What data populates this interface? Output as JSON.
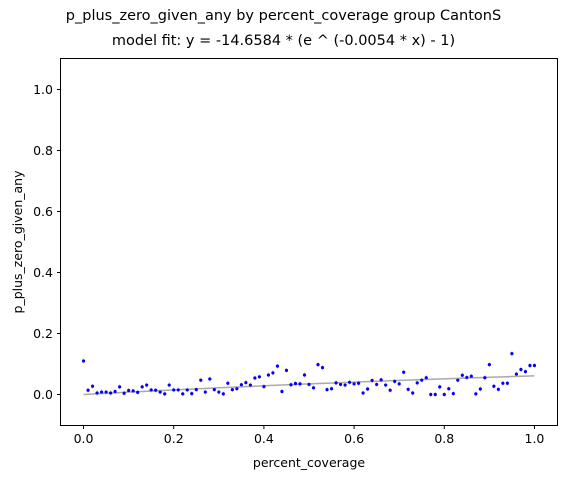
{
  "chart_data": {
    "type": "scatter",
    "title": "p_plus_zero_given_any by percent_coverage group CantonS",
    "subtitle": "model fit: y = -14.6584 * (e ^ (-0.0054 * x) - 1)",
    "xlabel": "percent_coverage",
    "ylabel": "p_plus_zero_given_any",
    "xlim": [
      -0.05,
      1.05
    ],
    "ylim": [
      -0.1,
      1.1
    ],
    "xticks": [
      0.0,
      0.2,
      0.4,
      0.6,
      0.8,
      1.0
    ],
    "xtick_labels": [
      "0.0",
      "0.2",
      "0.4",
      "0.6",
      "0.8",
      "1.0"
    ],
    "yticks": [
      0.0,
      0.2,
      0.4,
      0.6,
      0.8,
      1.0
    ],
    "ytick_labels": [
      "0.0",
      "0.2",
      "0.4",
      "0.6",
      "0.8",
      "1.0"
    ],
    "grid": false,
    "colors": {
      "points": "#0000ff",
      "fit_line": "#aaaaaa",
      "error_bars": "#e8b0a0"
    },
    "series": [
      {
        "kind": "points",
        "x": [
          0.0,
          0.01,
          0.02,
          0.03,
          0.04,
          0.05,
          0.06,
          0.07,
          0.08,
          0.09,
          0.1,
          0.11,
          0.12,
          0.13,
          0.14,
          0.15,
          0.16,
          0.17,
          0.18,
          0.19,
          0.2,
          0.21,
          0.22,
          0.23,
          0.24,
          0.25,
          0.26,
          0.27,
          0.28,
          0.29,
          0.3,
          0.31,
          0.32,
          0.33,
          0.34,
          0.35,
          0.36,
          0.37,
          0.38,
          0.39,
          0.4,
          0.41,
          0.42,
          0.43,
          0.44,
          0.45,
          0.46,
          0.47,
          0.48,
          0.49,
          0.5,
          0.51,
          0.52,
          0.53,
          0.54,
          0.55,
          0.56,
          0.57,
          0.58,
          0.59,
          0.6,
          0.61,
          0.62,
          0.63,
          0.64,
          0.65,
          0.66,
          0.67,
          0.68,
          0.69,
          0.7,
          0.71,
          0.72,
          0.73,
          0.74,
          0.75,
          0.76,
          0.77,
          0.78,
          0.79,
          0.8,
          0.81,
          0.82,
          0.83,
          0.84,
          0.85,
          0.86,
          0.87,
          0.88,
          0.89,
          0.9,
          0.91,
          0.92,
          0.93,
          0.94,
          0.95,
          0.96,
          0.97,
          0.98,
          0.99,
          1.0
        ],
        "y": [
          0.11,
          0.014,
          0.027,
          0.005,
          0.008,
          0.008,
          0.005,
          0.01,
          0.025,
          0.004,
          0.013,
          0.012,
          0.007,
          0.025,
          0.031,
          0.015,
          0.014,
          0.008,
          0.002,
          0.031,
          0.015,
          0.015,
          0.002,
          0.015,
          0.003,
          0.016,
          0.047,
          0.008,
          0.051,
          0.016,
          0.008,
          0.002,
          0.037,
          0.016,
          0.019,
          0.032,
          0.039,
          0.031,
          0.054,
          0.058,
          0.026,
          0.064,
          0.071,
          0.093,
          0.01,
          0.079,
          0.032,
          0.036,
          0.035,
          0.064,
          0.033,
          0.022,
          0.098,
          0.088,
          0.016,
          0.019,
          0.038,
          0.033,
          0.031,
          0.04,
          0.035,
          0.037,
          0.005,
          0.018,
          0.046,
          0.033,
          0.048,
          0.031,
          0.014,
          0.043,
          0.035,
          0.073,
          0.017,
          0.005,
          0.038,
          0.047,
          0.055,
          0.0,
          0.0,
          0.025,
          0.0,
          0.019,
          0.003,
          0.047,
          0.063,
          0.056,
          0.06,
          0.002,
          0.018,
          0.055,
          0.098,
          0.027,
          0.017,
          0.037,
          0.037,
          0.134,
          0.067,
          0.082,
          0.075,
          0.095,
          0.095
        ]
      },
      {
        "kind": "fit_line",
        "model": {
          "a": -14.6584,
          "b": -0.0054
        }
      }
    ]
  }
}
